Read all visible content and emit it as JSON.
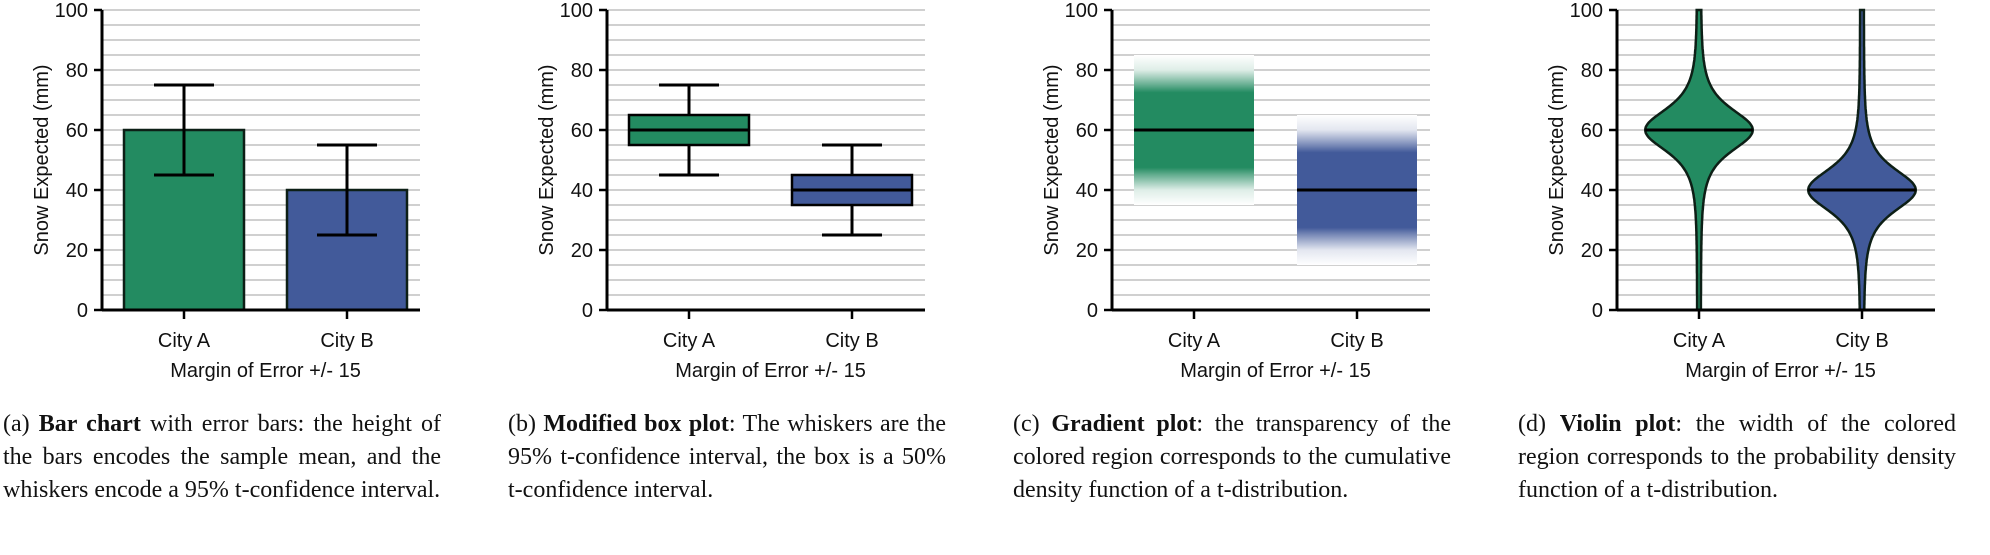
{
  "colors": {
    "green": "#238b61",
    "blue": "#425a9a",
    "outline": "#0d1f16",
    "grid": "#b5b5b5"
  },
  "chart_data": [
    {
      "type": "bar",
      "variant": "bar-with-error-bars",
      "categories": [
        "City A",
        "City B"
      ],
      "values": [
        60,
        40
      ],
      "error_low": [
        45,
        25
      ],
      "error_high": [
        75,
        55
      ],
      "xlabel": "Margin of Error +/- 15",
      "ylabel": "Snow Expected (mm)",
      "ylim": [
        0,
        100
      ],
      "yticks": [
        "0",
        "20",
        "40",
        "60",
        "80",
        "100"
      ],
      "grid": "horizontal every 5"
    },
    {
      "type": "bar",
      "variant": "modified-box-plot",
      "categories": [
        "City A",
        "City B"
      ],
      "values": [
        60,
        40
      ],
      "box_low": [
        55,
        35
      ],
      "box_high": [
        65,
        45
      ],
      "whisker_low": [
        45,
        25
      ],
      "whisker_high": [
        75,
        55
      ],
      "xlabel": "Margin of Error +/- 15",
      "ylabel": "Snow Expected (mm)",
      "ylim": [
        0,
        100
      ],
      "yticks": [
        "0",
        "20",
        "40",
        "60",
        "80",
        "100"
      ],
      "grid": "horizontal every 5"
    },
    {
      "type": "bar",
      "variant": "gradient-plot",
      "categories": [
        "City A",
        "City B"
      ],
      "values": [
        60,
        40
      ],
      "range_low": [
        35,
        15
      ],
      "range_high": [
        85,
        65
      ],
      "xlabel": "Margin of Error +/- 15",
      "ylabel": "Snow Expected (mm)",
      "ylim": [
        0,
        100
      ],
      "yticks": [
        "0",
        "20",
        "40",
        "60",
        "80",
        "100"
      ],
      "grid": "horizontal every 5"
    },
    {
      "type": "bar",
      "variant": "violin-plot",
      "categories": [
        "City A",
        "City B"
      ],
      "values": [
        60,
        40
      ],
      "violin_sd": [
        7.5,
        7.5
      ],
      "xlabel": "Margin of Error +/- 15",
      "ylabel": "Snow Expected (mm)",
      "ylim": [
        0,
        100
      ],
      "yticks": [
        "0",
        "20",
        "40",
        "60",
        "80",
        "100"
      ],
      "grid": "horizontal every 5"
    }
  ],
  "captions": [
    {
      "label": "(a)",
      "bold": "Bar chart",
      "text": " with error bars: the height of the bars encodes the sample mean, and the whiskers encode a 95% t-confidence interval."
    },
    {
      "label": "(b)",
      "bold": "Modified box plot",
      "text": ": The whiskers are the 95% t-confidence interval, the box is a 50% t-confidence interval."
    },
    {
      "label": "(c)",
      "bold": "Gradient plot",
      "text": ": the transparency of the colored region corresponds to the cumulative density function of a t-distribution."
    },
    {
      "label": "(d)",
      "bold": "Violin plot",
      "text": ": the width of the colored region corresponds to the probability density function of a t-distribution."
    }
  ]
}
